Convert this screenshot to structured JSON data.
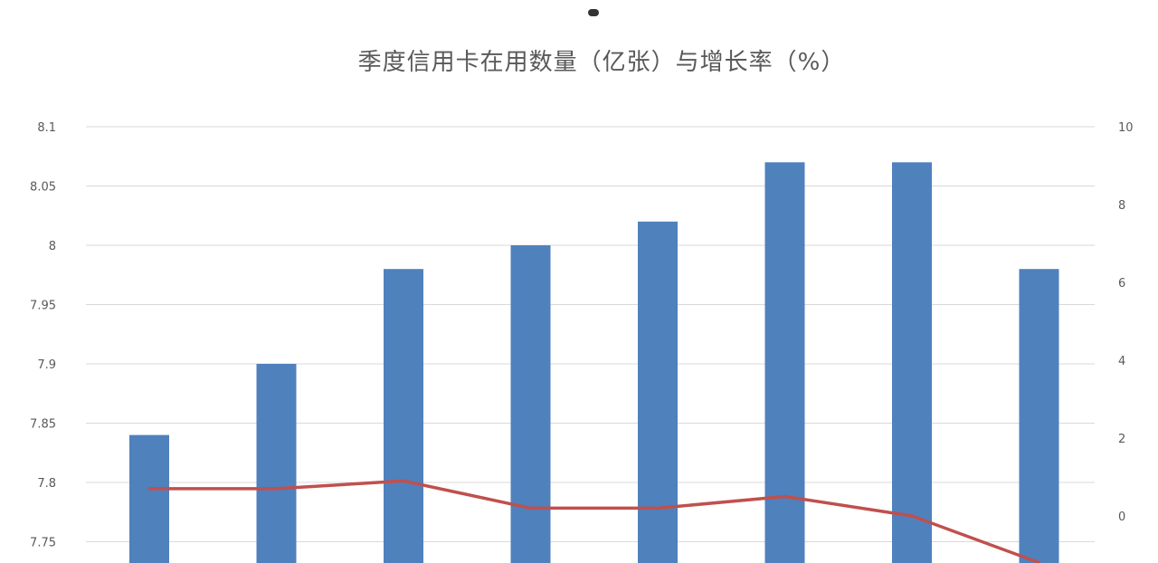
{
  "chart_data": {
    "type": "bar",
    "title": "季度信用卡在用数量（亿张）与增长率（%）",
    "categories": [
      "",
      "",
      "",
      "",
      "",
      "",
      "",
      ""
    ],
    "series": [
      {
        "type": "bar",
        "axis": "left",
        "color": "#4f81bd",
        "values": [
          7.84,
          7.9,
          7.98,
          8.0,
          8.02,
          8.07,
          8.07,
          7.98
        ]
      },
      {
        "type": "line",
        "axis": "right",
        "color": "#c0504d",
        "values": [
          0.7,
          0.7,
          0.9,
          0.2,
          0.2,
          0.5,
          0.0,
          -1.2
        ]
      }
    ],
    "y_left": {
      "ticks": [
        "8.1",
        "8.05",
        "8",
        "7.95",
        "7.9",
        "7.85",
        "7.8",
        "7.75"
      ],
      "range": [
        7.72,
        8.1
      ]
    },
    "y_right": {
      "ticks": [
        "10",
        "8",
        "6",
        "4",
        "2",
        "0"
      ],
      "range": [
        -1.3,
        10
      ]
    },
    "grid": true
  }
}
